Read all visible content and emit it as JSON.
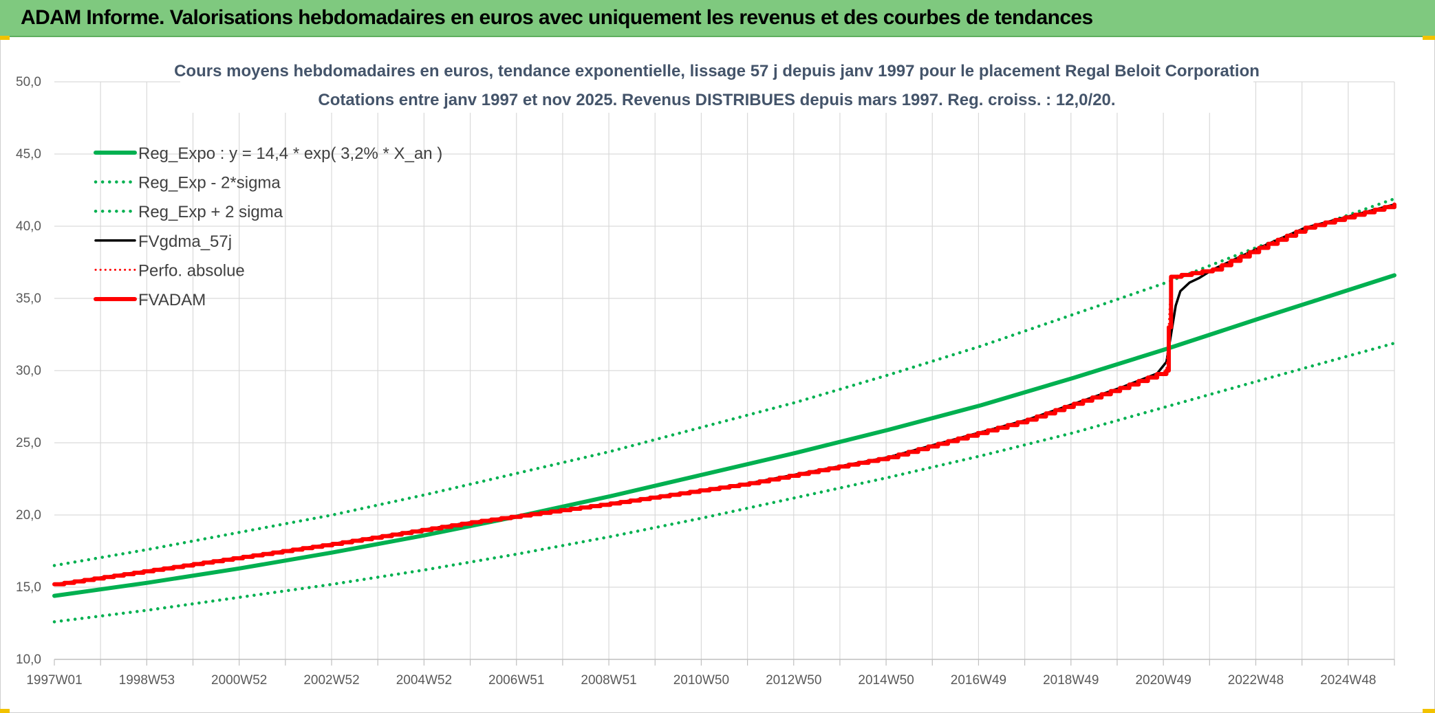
{
  "header": {
    "title": "ADAM Informe. Valorisations hebdomadaires en euros avec uniquement les revenus et des courbes de tendances"
  },
  "colors": {
    "green": "#00b050",
    "red": "#ff0000",
    "black": "#000000",
    "header_bg": "#7fc97f",
    "grid": "#d9d9d9",
    "title": "#44546a"
  },
  "chart_data": {
    "type": "line",
    "title_line1": "Cours moyens hebdomadaires en euros, tendance exponentielle, lissage 57 j depuis janv 1997 pour le placement Regal Beloit Corporation",
    "title_line2": "Cotations entre janv 1997 et nov 2025. Revenus DISTRIBUES depuis mars 1997. Reg. croiss. : 12,0/20.",
    "ylim": [
      10,
      50
    ],
    "y_ticks": [
      "10,0",
      "15,0",
      "20,0",
      "25,0",
      "30,0",
      "35,0",
      "40,0",
      "45,0",
      "50,0"
    ],
    "x_range": [
      1997.0,
      2025.92
    ],
    "x_tick_labels": [
      "1997W01",
      "1998W53",
      "2000W52",
      "2002W52",
      "2004W52",
      "2006W51",
      "2008W51",
      "2010W50",
      "2012W50",
      "2014W50",
      "2016W49",
      "2018W49",
      "2020W49",
      "2022W48",
      "2024W48"
    ],
    "grid": true,
    "legend_position": "top-left",
    "series": [
      {
        "name": "Reg_Expo : y = 14,4 * exp( 3,2% *  X_an )",
        "style": "solid-green",
        "x": [
          1997.0,
          1999.0,
          2001.0,
          2003.0,
          2005.0,
          2007.0,
          2009.0,
          2011.0,
          2013.0,
          2015.0,
          2017.0,
          2019.0,
          2021.0,
          2023.0,
          2025.92
        ],
        "y": [
          14.4,
          15.3,
          16.3,
          17.4,
          18.6,
          19.9,
          21.3,
          22.8,
          24.3,
          25.9,
          27.6,
          29.5,
          31.5,
          33.6,
          36.6
        ]
      },
      {
        "name": "Reg_Exp - 2*sigma",
        "style": "dotted-green",
        "x": [
          1997.0,
          1999.0,
          2001.0,
          2003.0,
          2005.0,
          2007.0,
          2009.0,
          2011.0,
          2013.0,
          2015.0,
          2017.0,
          2019.0,
          2021.0,
          2023.0,
          2025.92
        ],
        "y": [
          12.6,
          13.4,
          14.3,
          15.2,
          16.2,
          17.3,
          18.5,
          19.8,
          21.2,
          22.6,
          24.1,
          25.7,
          27.5,
          29.3,
          31.9
        ]
      },
      {
        "name": "Reg_Exp + 2 sigma",
        "style": "dotted-green",
        "x": [
          1997.0,
          1999.0,
          2001.0,
          2003.0,
          2005.0,
          2007.0,
          2009.0,
          2011.0,
          2013.0,
          2015.0,
          2017.0,
          2019.0,
          2021.0,
          2023.0,
          2025.92
        ],
        "y": [
          16.5,
          17.6,
          18.8,
          20.0,
          21.4,
          22.9,
          24.4,
          26.1,
          27.8,
          29.7,
          31.7,
          33.9,
          36.1,
          38.6,
          41.9
        ]
      },
      {
        "name": "FVgdma_57j",
        "style": "solid-black",
        "x": [
          1997.0,
          2000.0,
          2003.0,
          2006.0,
          2009.0,
          2012.0,
          2015.0,
          2018.0,
          2020.0,
          2020.8,
          2021.0,
          2021.1,
          2021.2,
          2021.3,
          2021.5,
          2021.7,
          2022.0,
          2023.0,
          2024.0,
          2025.92
        ],
        "y": [
          15.2,
          16.6,
          18.0,
          19.5,
          20.8,
          22.2,
          24.0,
          26.6,
          28.8,
          29.8,
          30.6,
          32.5,
          34.5,
          35.5,
          36.1,
          36.4,
          37.0,
          38.5,
          39.9,
          41.5
        ]
      },
      {
        "name": "Perfo. absolue",
        "style": "dotted-red",
        "x": [
          1997.0,
          2000.0,
          2003.0,
          2006.0,
          2009.0,
          2012.0,
          2015.0,
          2018.0,
          2020.0,
          2021.0,
          2021.05,
          2021.1,
          2022.0,
          2023.0,
          2024.0,
          2025.92
        ],
        "y": [
          15.2,
          16.6,
          18.0,
          19.5,
          20.8,
          22.2,
          24.0,
          26.6,
          28.8,
          30.0,
          33.0,
          36.5,
          37.0,
          38.5,
          39.9,
          41.5
        ]
      },
      {
        "name": "FVADAM",
        "style": "solid-red",
        "x": [
          1997.0,
          2000.0,
          2003.0,
          2006.0,
          2009.0,
          2012.0,
          2015.0,
          2018.0,
          2020.0,
          2021.0,
          2021.05,
          2021.1,
          2022.0,
          2023.0,
          2024.0,
          2025.92
        ],
        "y": [
          15.2,
          16.6,
          18.0,
          19.5,
          20.8,
          22.2,
          24.0,
          26.6,
          28.8,
          30.0,
          33.0,
          36.5,
          37.0,
          38.5,
          39.9,
          41.5
        ]
      }
    ]
  }
}
